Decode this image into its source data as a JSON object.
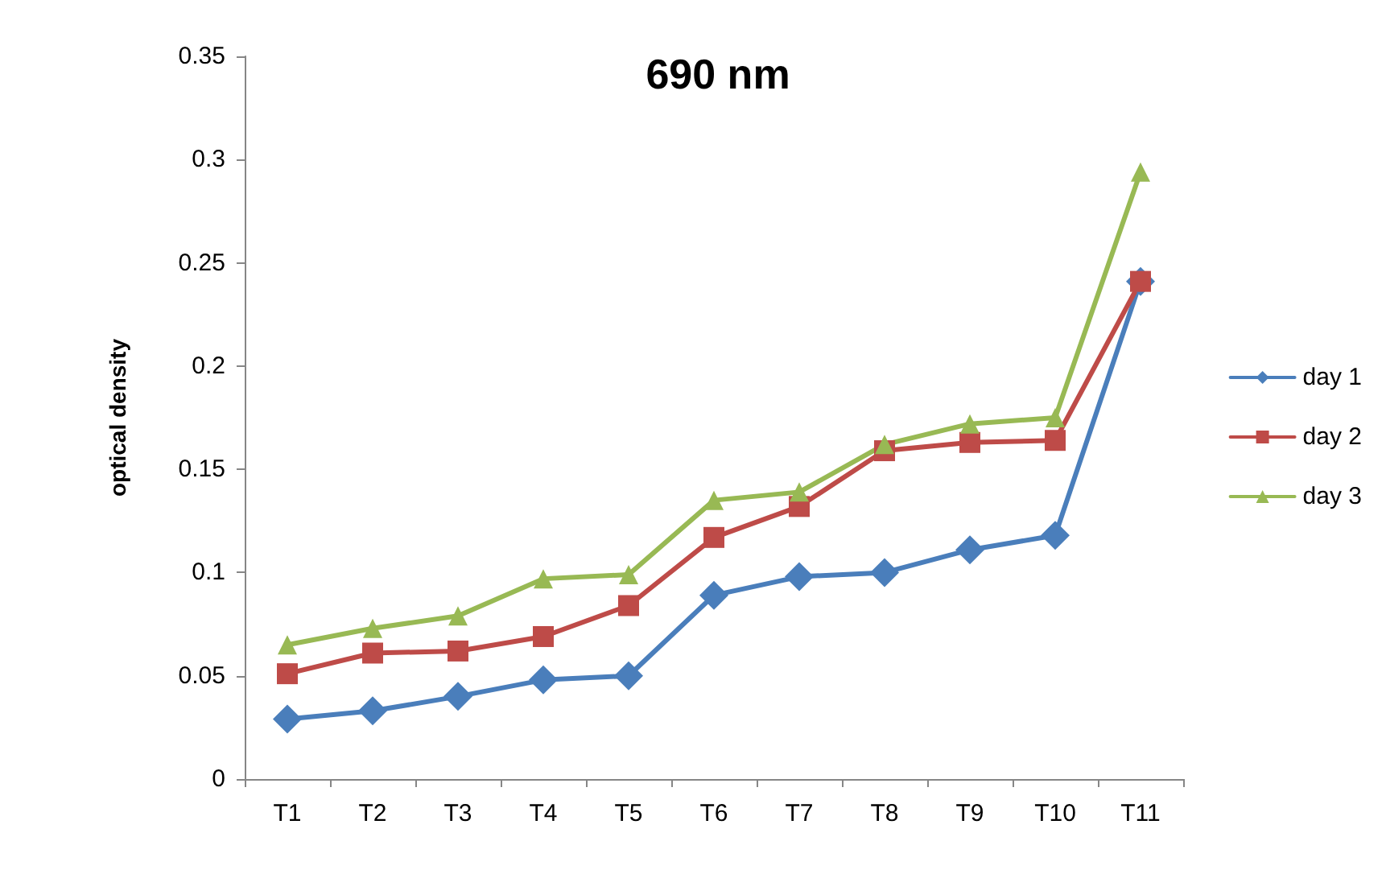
{
  "chart_data": {
    "type": "line",
    "title": "690 nm",
    "ylabel": "optical density",
    "categories": [
      "T1",
      "T2",
      "T3",
      "T4",
      "T5",
      "T6",
      "T7",
      "T8",
      "T9",
      "T10",
      "T11"
    ],
    "series": [
      {
        "name": "day 1",
        "color": "#4a7ebb",
        "marker": "diamond",
        "values": [
          0.029,
          0.033,
          0.04,
          0.048,
          0.05,
          0.089,
          0.098,
          0.1,
          0.111,
          0.118,
          0.241
        ]
      },
      {
        "name": "day 2",
        "color": "#be4b48",
        "marker": "square",
        "values": [
          0.051,
          0.061,
          0.062,
          0.069,
          0.084,
          0.117,
          0.132,
          0.159,
          0.163,
          0.164,
          0.241
        ]
      },
      {
        "name": "day 3",
        "color": "#98b954",
        "marker": "triangle",
        "values": [
          0.065,
          0.073,
          0.079,
          0.097,
          0.099,
          0.135,
          0.139,
          0.162,
          0.172,
          0.175,
          0.294
        ]
      }
    ],
    "ylim": [
      0,
      0.35
    ],
    "yticks": [
      0,
      0.05,
      0.1,
      0.15,
      0.2,
      0.25,
      0.3,
      0.35
    ],
    "grid": false,
    "legend": "right",
    "line_style": "solid"
  }
}
